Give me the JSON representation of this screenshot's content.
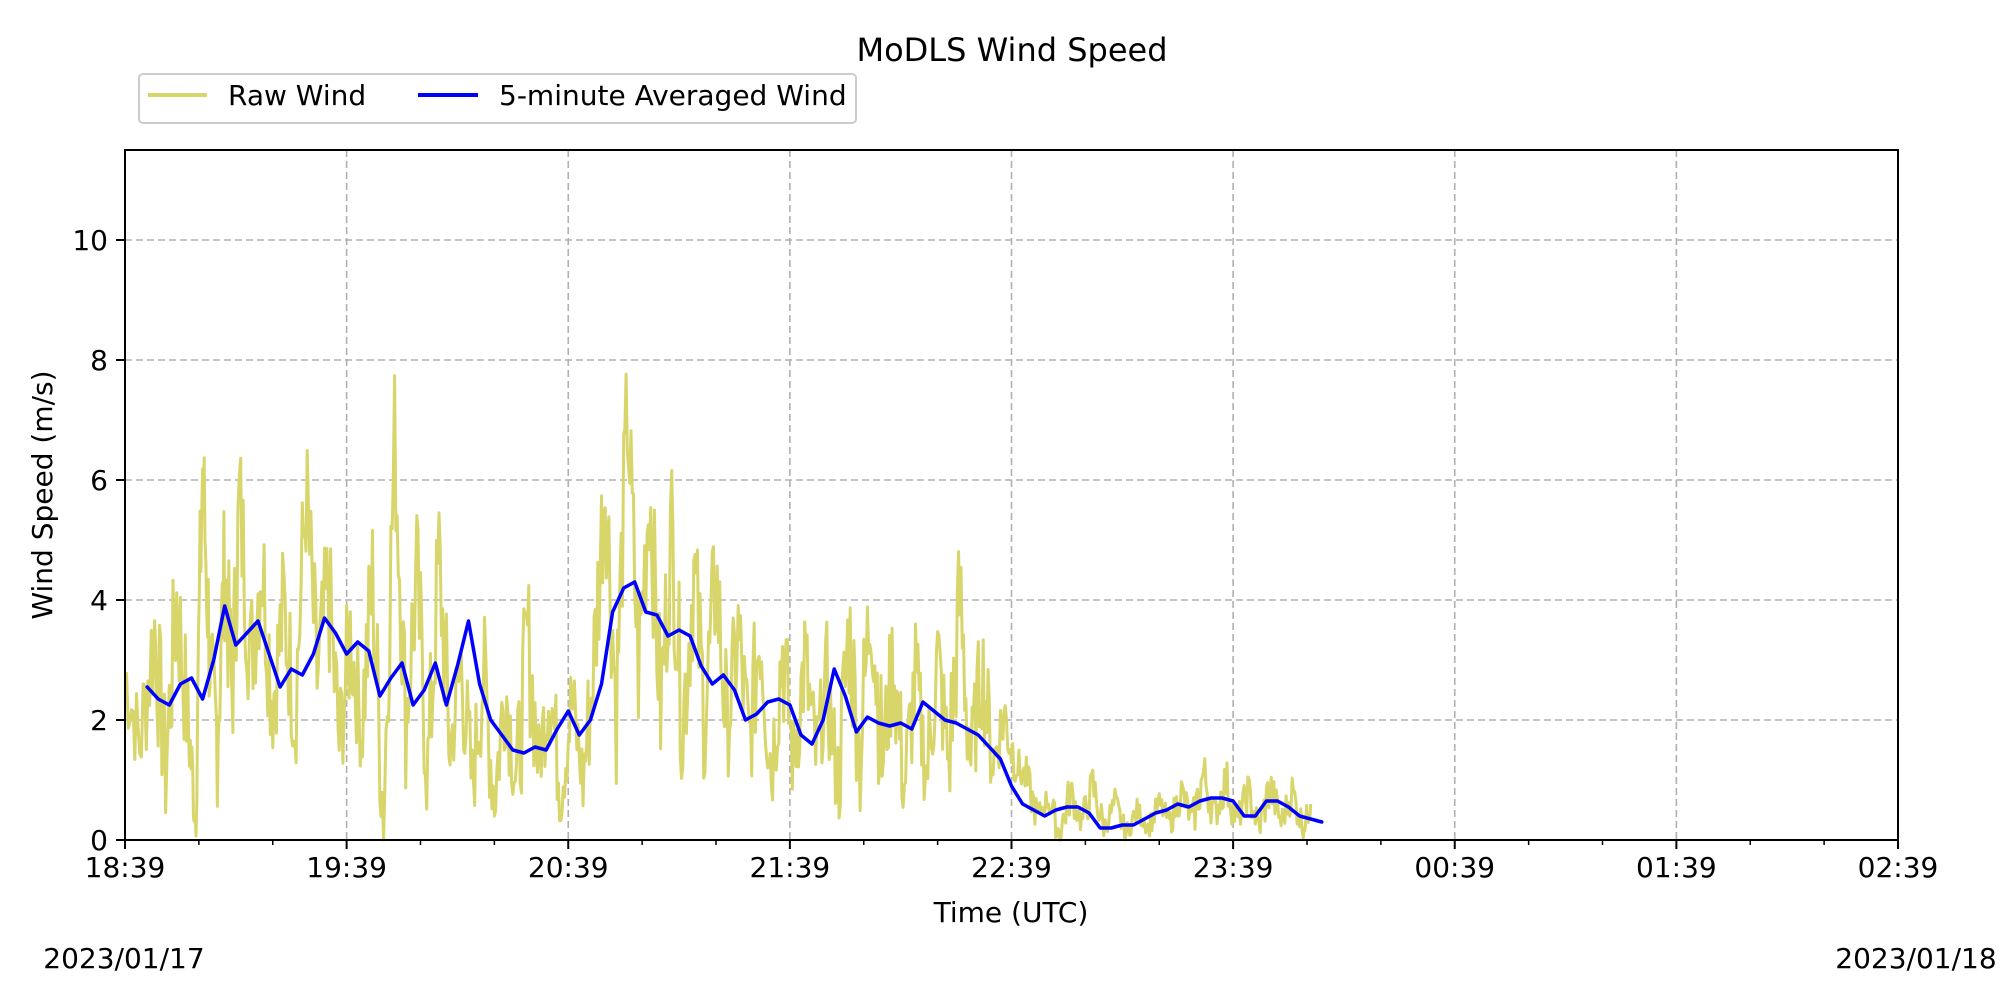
{
  "chart_data": {
    "type": "line",
    "title": "MoDLS Wind Speed",
    "xlabel": "Time (UTC)",
    "ylabel": "Wind Speed (m/s)",
    "x_ticks": [
      "18:39",
      "19:39",
      "20:39",
      "21:39",
      "22:39",
      "23:39",
      "00:39",
      "01:39",
      "02:39"
    ],
    "x_range": [
      "2023-01-17T18:39",
      "2023-01-18T02:39"
    ],
    "y_ticks": [
      0,
      2,
      4,
      6,
      8,
      10
    ],
    "ylim": [
      0,
      11.5
    ],
    "grid": true,
    "legend_position": "top-left, above plot",
    "date_start": "2023/01/17",
    "date_end": "2023/01/18",
    "series": [
      {
        "name": "Raw Wind",
        "color": "#d8d56b",
        "style": "noisy high-frequency samples",
        "points": [
          [
            "18:39",
            2.8
          ],
          [
            "18:43",
            1.6
          ],
          [
            "18:47",
            3.5
          ],
          [
            "18:50",
            1.2
          ],
          [
            "18:53",
            4.0
          ],
          [
            "18:56",
            2.0
          ],
          [
            "18:58",
            0.5
          ],
          [
            "19:00",
            6.2
          ],
          [
            "19:02",
            3.0
          ],
          [
            "19:04",
            1.8
          ],
          [
            "19:06",
            4.6
          ],
          [
            "19:08",
            2.4
          ],
          [
            "19:10",
            5.7
          ],
          [
            "19:13",
            3.0
          ],
          [
            "19:16",
            4.7
          ],
          [
            "19:19",
            2.3
          ],
          [
            "19:22",
            3.9
          ],
          [
            "19:25",
            2.1
          ],
          [
            "19:28",
            5.8
          ],
          [
            "19:31",
            2.7
          ],
          [
            "19:34",
            4.2
          ],
          [
            "19:37",
            1.6
          ],
          [
            "19:40",
            3.4
          ],
          [
            "19:43",
            1.9
          ],
          [
            "19:46",
            4.3
          ],
          [
            "19:49",
            0.4
          ],
          [
            "19:52",
            6.7
          ],
          [
            "19:55",
            2.0
          ],
          [
            "19:58",
            4.4
          ],
          [
            "20:01",
            1.1
          ],
          [
            "20:04",
            4.7
          ],
          [
            "20:07",
            1.5
          ],
          [
            "20:10",
            2.9
          ],
          [
            "20:13",
            0.9
          ],
          [
            "20:16",
            2.8
          ],
          [
            "20:19",
            0.7
          ],
          [
            "20:22",
            2.6
          ],
          [
            "20:25",
            0.9
          ],
          [
            "20:28",
            3.4
          ],
          [
            "20:31",
            1.3
          ],
          [
            "20:34",
            2.6
          ],
          [
            "20:37",
            0.8
          ],
          [
            "20:40",
            2.3
          ],
          [
            "20:43",
            1.0
          ],
          [
            "20:46",
            3.0
          ],
          [
            "20:49",
            6.1
          ],
          [
            "20:52",
            2.2
          ],
          [
            "20:55",
            7.2
          ],
          [
            "20:58",
            2.9
          ],
          [
            "21:01",
            5.9
          ],
          [
            "21:04",
            2.2
          ],
          [
            "21:07",
            5.2
          ],
          [
            "21:10",
            1.9
          ],
          [
            "21:13",
            4.5
          ],
          [
            "21:16",
            2.0
          ],
          [
            "21:19",
            4.4
          ],
          [
            "21:22",
            1.8
          ],
          [
            "21:25",
            3.4
          ],
          [
            "21:28",
            1.6
          ],
          [
            "21:31",
            3.6
          ],
          [
            "21:34",
            1.2
          ],
          [
            "21:37",
            3.2
          ],
          [
            "21:40",
            1.3
          ],
          [
            "21:43",
            3.0
          ],
          [
            "21:46",
            1.4
          ],
          [
            "21:49",
            2.6
          ],
          [
            "21:52",
            0.9
          ],
          [
            "21:55",
            3.5
          ],
          [
            "21:58",
            1.4
          ],
          [
            "22:01",
            4.1
          ],
          [
            "22:04",
            1.3
          ],
          [
            "22:07",
            3.0
          ],
          [
            "22:10",
            0.9
          ],
          [
            "22:13",
            2.7
          ],
          [
            "22:16",
            1.1
          ],
          [
            "22:19",
            3.0
          ],
          [
            "22:22",
            1.3
          ],
          [
            "22:25",
            4.0
          ],
          [
            "22:28",
            1.3
          ],
          [
            "22:31",
            2.9
          ],
          [
            "22:34",
            1.3
          ],
          [
            "22:37",
            2.1
          ],
          [
            "22:40",
            1.3
          ],
          [
            "22:43",
            1.0
          ],
          [
            "22:46",
            0.4
          ],
          [
            "22:49",
            0.7
          ],
          [
            "22:52",
            0.1
          ],
          [
            "22:55",
            0.8
          ],
          [
            "22:58",
            0.3
          ],
          [
            "23:01",
            0.9
          ],
          [
            "23:04",
            0.2
          ],
          [
            "23:07",
            0.6
          ],
          [
            "23:10",
            0.1
          ],
          [
            "23:13",
            0.5
          ],
          [
            "23:16",
            0.2
          ],
          [
            "23:19",
            0.6
          ],
          [
            "23:22",
            0.3
          ],
          [
            "23:25",
            0.8
          ],
          [
            "23:28",
            0.3
          ],
          [
            "23:31",
            1.1
          ],
          [
            "23:34",
            0.4
          ],
          [
            "23:37",
            1.0
          ],
          [
            "23:40",
            0.3
          ],
          [
            "23:43",
            0.8
          ],
          [
            "23:46",
            0.2
          ],
          [
            "23:49",
            0.9
          ],
          [
            "23:52",
            0.3
          ],
          [
            "23:55",
            0.8
          ],
          [
            "23:58",
            0.2
          ],
          [
            "00:00",
            0.6
          ]
        ]
      },
      {
        "name": "5-minute Averaged Wind",
        "color": "#0000ff",
        "style": "smooth line",
        "points": [
          [
            "18:45",
            2.55
          ],
          [
            "18:48",
            2.35
          ],
          [
            "18:51",
            2.25
          ],
          [
            "18:54",
            2.6
          ],
          [
            "18:57",
            2.7
          ],
          [
            "19:00",
            2.35
          ],
          [
            "19:03",
            3.0
          ],
          [
            "19:06",
            3.9
          ],
          [
            "19:09",
            3.25
          ],
          [
            "19:12",
            3.45
          ],
          [
            "19:15",
            3.65
          ],
          [
            "19:18",
            3.1
          ],
          [
            "19:21",
            2.55
          ],
          [
            "19:24",
            2.85
          ],
          [
            "19:27",
            2.75
          ],
          [
            "19:30",
            3.1
          ],
          [
            "19:33",
            3.7
          ],
          [
            "19:36",
            3.45
          ],
          [
            "19:39",
            3.1
          ],
          [
            "19:42",
            3.3
          ],
          [
            "19:45",
            3.15
          ],
          [
            "19:48",
            2.4
          ],
          [
            "19:51",
            2.7
          ],
          [
            "19:54",
            2.95
          ],
          [
            "19:57",
            2.25
          ],
          [
            "20:00",
            2.5
          ],
          [
            "20:03",
            2.95
          ],
          [
            "20:06",
            2.25
          ],
          [
            "20:09",
            2.9
          ],
          [
            "20:12",
            3.65
          ],
          [
            "20:15",
            2.6
          ],
          [
            "20:18",
            2.0
          ],
          [
            "20:21",
            1.75
          ],
          [
            "20:24",
            1.5
          ],
          [
            "20:27",
            1.45
          ],
          [
            "20:30",
            1.55
          ],
          [
            "20:33",
            1.5
          ],
          [
            "20:36",
            1.85
          ],
          [
            "20:39",
            2.15
          ],
          [
            "20:42",
            1.75
          ],
          [
            "20:45",
            2.0
          ],
          [
            "20:48",
            2.6
          ],
          [
            "20:51",
            3.8
          ],
          [
            "20:54",
            4.2
          ],
          [
            "20:57",
            4.3
          ],
          [
            "21:00",
            3.8
          ],
          [
            "21:03",
            3.75
          ],
          [
            "21:06",
            3.4
          ],
          [
            "21:09",
            3.5
          ],
          [
            "21:12",
            3.4
          ],
          [
            "21:15",
            2.9
          ],
          [
            "21:18",
            2.6
          ],
          [
            "21:21",
            2.75
          ],
          [
            "21:24",
            2.5
          ],
          [
            "21:27",
            2.0
          ],
          [
            "21:30",
            2.1
          ],
          [
            "21:33",
            2.3
          ],
          [
            "21:36",
            2.35
          ],
          [
            "21:39",
            2.25
          ],
          [
            "21:42",
            1.75
          ],
          [
            "21:45",
            1.6
          ],
          [
            "21:48",
            2.0
          ],
          [
            "21:51",
            2.85
          ],
          [
            "21:54",
            2.4
          ],
          [
            "21:57",
            1.8
          ],
          [
            "22:00",
            2.05
          ],
          [
            "22:03",
            1.95
          ],
          [
            "22:06",
            1.9
          ],
          [
            "22:09",
            1.95
          ],
          [
            "22:12",
            1.85
          ],
          [
            "22:15",
            2.3
          ],
          [
            "22:18",
            2.15
          ],
          [
            "22:21",
            2.0
          ],
          [
            "22:24",
            1.95
          ],
          [
            "22:27",
            1.85
          ],
          [
            "22:30",
            1.75
          ],
          [
            "22:33",
            1.55
          ],
          [
            "22:36",
            1.35
          ],
          [
            "22:39",
            0.9
          ],
          [
            "22:42",
            0.6
          ],
          [
            "22:45",
            0.5
          ],
          [
            "22:48",
            0.4
          ],
          [
            "22:51",
            0.5
          ],
          [
            "22:54",
            0.55
          ],
          [
            "22:57",
            0.55
          ],
          [
            "23:00",
            0.45
          ],
          [
            "23:03",
            0.2
          ],
          [
            "23:06",
            0.2
          ],
          [
            "23:09",
            0.25
          ],
          [
            "23:12",
            0.25
          ],
          [
            "23:15",
            0.35
          ],
          [
            "23:18",
            0.45
          ],
          [
            "23:21",
            0.5
          ],
          [
            "23:24",
            0.6
          ],
          [
            "23:27",
            0.55
          ],
          [
            "23:30",
            0.65
          ],
          [
            "23:33",
            0.7
          ],
          [
            "23:36",
            0.7
          ],
          [
            "23:39",
            0.65
          ],
          [
            "23:42",
            0.4
          ],
          [
            "23:45",
            0.4
          ],
          [
            "23:48",
            0.65
          ],
          [
            "23:51",
            0.65
          ],
          [
            "23:54",
            0.55
          ],
          [
            "23:57",
            0.4
          ],
          [
            "24:00",
            0.35
          ],
          [
            "24:03",
            0.3
          ]
        ]
      }
    ]
  }
}
